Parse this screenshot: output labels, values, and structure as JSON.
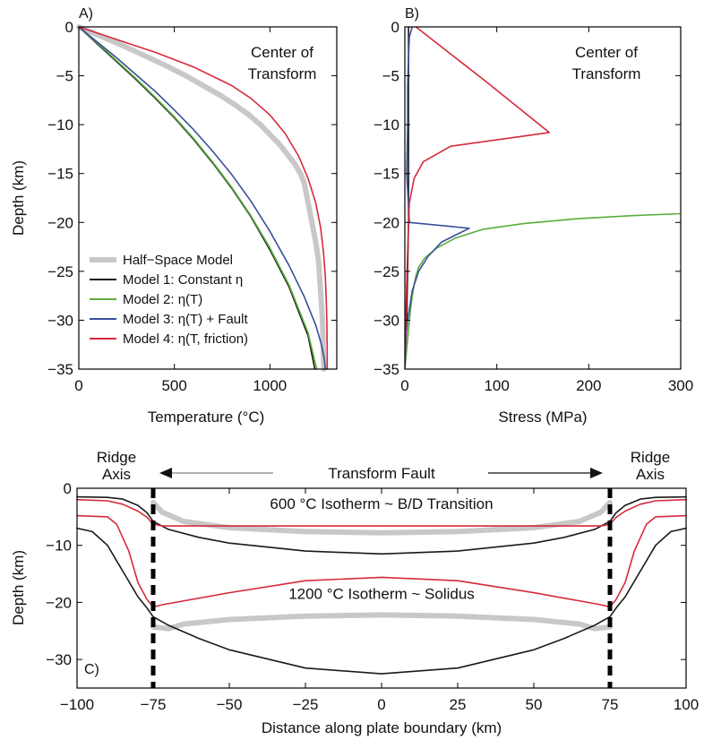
{
  "colors": {
    "half_space": "#c8c8c8",
    "model1": "#1a1a1a",
    "model2": "#5aae3c",
    "model3": "#3a4f9a",
    "model4": "#d6293c"
  },
  "chart_data": [
    {
      "panel": "A)",
      "type": "line",
      "xlabel": "Temperature (°C)",
      "ylabel": "Depth (km)",
      "xlim": [
        0,
        1350
      ],
      "ylim": [
        -35,
        0
      ],
      "xticks": [
        0,
        500,
        1000
      ],
      "yticks": [
        0,
        -5,
        -10,
        -15,
        -20,
        -25,
        -30,
        -35
      ],
      "annotation": [
        "Center of",
        "Transform"
      ],
      "legend": {
        "placement": "lower-left",
        "entries": [
          {
            "key": "half_space",
            "label": "Half−Space Model"
          },
          {
            "key": "model1",
            "label": "Model 1: Constant η"
          },
          {
            "key": "model2",
            "label": "Model 2: η(T)"
          },
          {
            "key": "model3",
            "label": "Model 3: η(T) + Fault"
          },
          {
            "key": "model4",
            "label": "Model 4: η(T, friction)"
          }
        ]
      },
      "series": [
        {
          "key": "half_space",
          "x": [
            0,
            120,
            240,
            350,
            460,
            560,
            650,
            740,
            820,
            890,
            950,
            1000,
            1050,
            1090,
            1130,
            1160,
            1180,
            1200,
            1220,
            1240,
            1255,
            1265,
            1275,
            1282
          ],
          "y": [
            0,
            -1,
            -2,
            -3,
            -4,
            -5,
            -6,
            -7,
            -8,
            -9,
            -10,
            -11,
            -12,
            -13,
            -14,
            -15,
            -16,
            -18,
            -20,
            -22,
            -24,
            -27,
            -30,
            -35
          ]
        },
        {
          "key": "model1",
          "x": [
            0,
            100,
            200,
            300,
            400,
            500,
            600,
            700,
            800,
            900,
            1000,
            1100,
            1200,
            1235
          ],
          "y": [
            0,
            -1.8,
            -3.6,
            -5.4,
            -7.3,
            -9.3,
            -11.5,
            -13.9,
            -16.5,
            -19.4,
            -22.8,
            -26.6,
            -31.6,
            -35
          ]
        },
        {
          "key": "model2",
          "x": [
            0,
            100,
            200,
            300,
            400,
            500,
            600,
            700,
            800,
            900,
            1000,
            1100,
            1200,
            1245
          ],
          "y": [
            0,
            -1.7,
            -3.5,
            -5.3,
            -7.2,
            -9.2,
            -11.4,
            -13.8,
            -16.4,
            -19.3,
            -22.6,
            -26.4,
            -31.3,
            -35
          ]
        },
        {
          "key": "model3",
          "x": [
            0,
            100,
            200,
            300,
            400,
            500,
            600,
            700,
            800,
            900,
            1000,
            1100,
            1180,
            1240,
            1270,
            1285,
            1290
          ],
          "y": [
            0,
            -1.6,
            -3.2,
            -4.9,
            -6.6,
            -8.5,
            -10.5,
            -12.7,
            -15.1,
            -17.8,
            -20.9,
            -24.4,
            -27.6,
            -30.5,
            -32.5,
            -34,
            -35
          ]
        },
        {
          "key": "model4",
          "x": [
            0,
            200,
            400,
            600,
            800,
            900,
            1000,
            1080,
            1150,
            1200,
            1240,
            1265,
            1280,
            1290,
            1295,
            1298,
            1300,
            1300
          ],
          "y": [
            0,
            -1.3,
            -2.6,
            -4.1,
            -6,
            -7.3,
            -9,
            -10.9,
            -13.2,
            -15.5,
            -18,
            -20.5,
            -23,
            -25.5,
            -28,
            -30,
            -33,
            -35
          ]
        }
      ]
    },
    {
      "panel": "B)",
      "type": "line",
      "xlabel": "Stress (MPa)",
      "ylabel": "",
      "xlim": [
        0,
        300
      ],
      "ylim": [
        -35,
        0
      ],
      "xticks": [
        0,
        100,
        200,
        300
      ],
      "yticks": [
        0,
        -5,
        -10,
        -15,
        -20,
        -25,
        -30,
        -35
      ],
      "annotation": [
        "Center of",
        "Transform"
      ],
      "series": [
        {
          "key": "model1",
          "x": [
            0,
            2,
            3,
            4,
            4,
            4
          ],
          "y": [
            -35,
            -30,
            -25,
            -20,
            -10,
            0
          ]
        },
        {
          "key": "model2",
          "x": [
            0,
            4,
            6,
            8,
            10,
            12,
            15,
            22,
            35,
            55,
            85,
            130,
            190,
            250,
            300
          ],
          "y": [
            -35,
            -31,
            -29,
            -27.6,
            -26.4,
            -25.5,
            -24.6,
            -23.6,
            -22.6,
            -21.6,
            -20.7,
            -20.1,
            -19.6,
            -19.3,
            -19.1
          ]
        },
        {
          "key": "model3",
          "x": [
            8,
            5,
            4,
            3,
            3,
            2,
            5,
            70,
            40,
            25,
            15,
            8,
            3,
            1,
            0
          ],
          "y": [
            0,
            -1,
            -3,
            -6,
            -10,
            -15,
            -20,
            -20.6,
            -22,
            -23.5,
            -25,
            -27,
            -30,
            -32,
            -35
          ]
        },
        {
          "key": "model4",
          "x": [
            12,
            87,
            157,
            50,
            20,
            10,
            5,
            4,
            3,
            2,
            1,
            0
          ],
          "y": [
            0,
            -5.5,
            -10.8,
            -12.2,
            -13.8,
            -15.5,
            -18,
            -20,
            -23,
            -26,
            -30,
            -35
          ]
        }
      ]
    },
    {
      "panel": "C)",
      "type": "line",
      "xlabel": "Distance along plate boundary (km)",
      "ylabel": "Depth (km)",
      "xlim": [
        -100,
        100
      ],
      "ylim": [
        -35,
        0
      ],
      "xticks": [
        -100,
        -75,
        -50,
        -25,
        0,
        25,
        50,
        75,
        100
      ],
      "yticks": [
        0,
        -10,
        -20,
        -30
      ],
      "fault_positions": [
        -75,
        75
      ],
      "top_labels": {
        "left": [
          "Ridge",
          "Axis"
        ],
        "center": "Transform Fault",
        "right": [
          "Ridge",
          "Axis"
        ]
      },
      "isotherm_labels": [
        {
          "text": "600 °C Isotherm ~ B/D Transition",
          "x": 0,
          "y": -3.6
        },
        {
          "text": "1200 °C Isotherm ~ Solidus",
          "x": 0,
          "y": -19.4
        }
      ],
      "series": [
        {
          "key": "half_space",
          "isotherm": 600,
          "x": [
            -75,
            -72,
            -65,
            -50,
            -25,
            0,
            25,
            50,
            65,
            72,
            75
          ],
          "y": [
            -2.5,
            -4.2,
            -5.8,
            -6.9,
            -7.6,
            -7.8,
            -7.6,
            -6.9,
            -5.8,
            -4.2,
            -2.5
          ]
        },
        {
          "key": "half_space",
          "isotherm": 1200,
          "x": [
            -75,
            -70,
            -65,
            -50,
            -25,
            0,
            25,
            50,
            65,
            70,
            75
          ],
          "y": [
            -24.3,
            -24.6,
            -23.8,
            -23,
            -22.4,
            -22.2,
            -22.4,
            -23,
            -23.8,
            -24.6,
            -24.3
          ]
        },
        {
          "key": "model1",
          "isotherm": 600,
          "x": [
            -100,
            -90,
            -85,
            -80,
            -77,
            -75,
            -70,
            -60,
            -50,
            -25,
            0,
            25,
            50,
            60,
            70,
            75,
            77,
            80,
            85,
            90,
            100
          ],
          "y": [
            -1.5,
            -1.6,
            -1.9,
            -3,
            -4.3,
            -5.8,
            -7.2,
            -8.6,
            -9.6,
            -11,
            -11.5,
            -11,
            -9.6,
            -8.6,
            -7.2,
            -5.8,
            -4.3,
            -3,
            -1.9,
            -1.6,
            -1.5
          ]
        },
        {
          "key": "model1",
          "isotherm": 1200,
          "x": [
            -100,
            -95,
            -90,
            -85,
            -80,
            -77,
            -75,
            -70,
            -60,
            -50,
            -25,
            0,
            25,
            50,
            60,
            70,
            75,
            77,
            80,
            85,
            90,
            95,
            100
          ],
          "y": [
            -7,
            -7.6,
            -10,
            -14.5,
            -19,
            -21,
            -22.5,
            -24,
            -26.3,
            -28.3,
            -31.5,
            -32.5,
            -31.5,
            -28.3,
            -26.3,
            -24,
            -22.5,
            -21,
            -19,
            -14.5,
            -10,
            -7.6,
            -7
          ]
        },
        {
          "key": "model4",
          "isotherm": 600,
          "x": [
            -100,
            -90,
            -85,
            -80,
            -77,
            -75,
            -72,
            -50,
            0,
            50,
            72,
            75,
            77,
            80,
            85,
            90,
            100
          ],
          "y": [
            -2,
            -2.2,
            -2.8,
            -4,
            -5.1,
            -6.3,
            -6.6,
            -6.6,
            -6.6,
            -6.6,
            -6.6,
            -6.3,
            -5.1,
            -4,
            -2.8,
            -2.2,
            -2
          ]
        },
        {
          "key": "model4",
          "isotherm": 1200,
          "x": [
            -100,
            -90,
            -87,
            -83,
            -80,
            -77,
            -75,
            -72,
            -50,
            -25,
            0,
            25,
            50,
            72,
            75,
            77,
            80,
            83,
            87,
            90,
            100
          ],
          "y": [
            -4.8,
            -5,
            -6.3,
            -11,
            -16.5,
            -19.5,
            -20.8,
            -20.4,
            -18.3,
            -16.2,
            -15.6,
            -16.2,
            -18.3,
            -20.4,
            -20.8,
            -19.5,
            -16.5,
            -11,
            -6.3,
            -5,
            -4.8
          ]
        }
      ]
    }
  ]
}
